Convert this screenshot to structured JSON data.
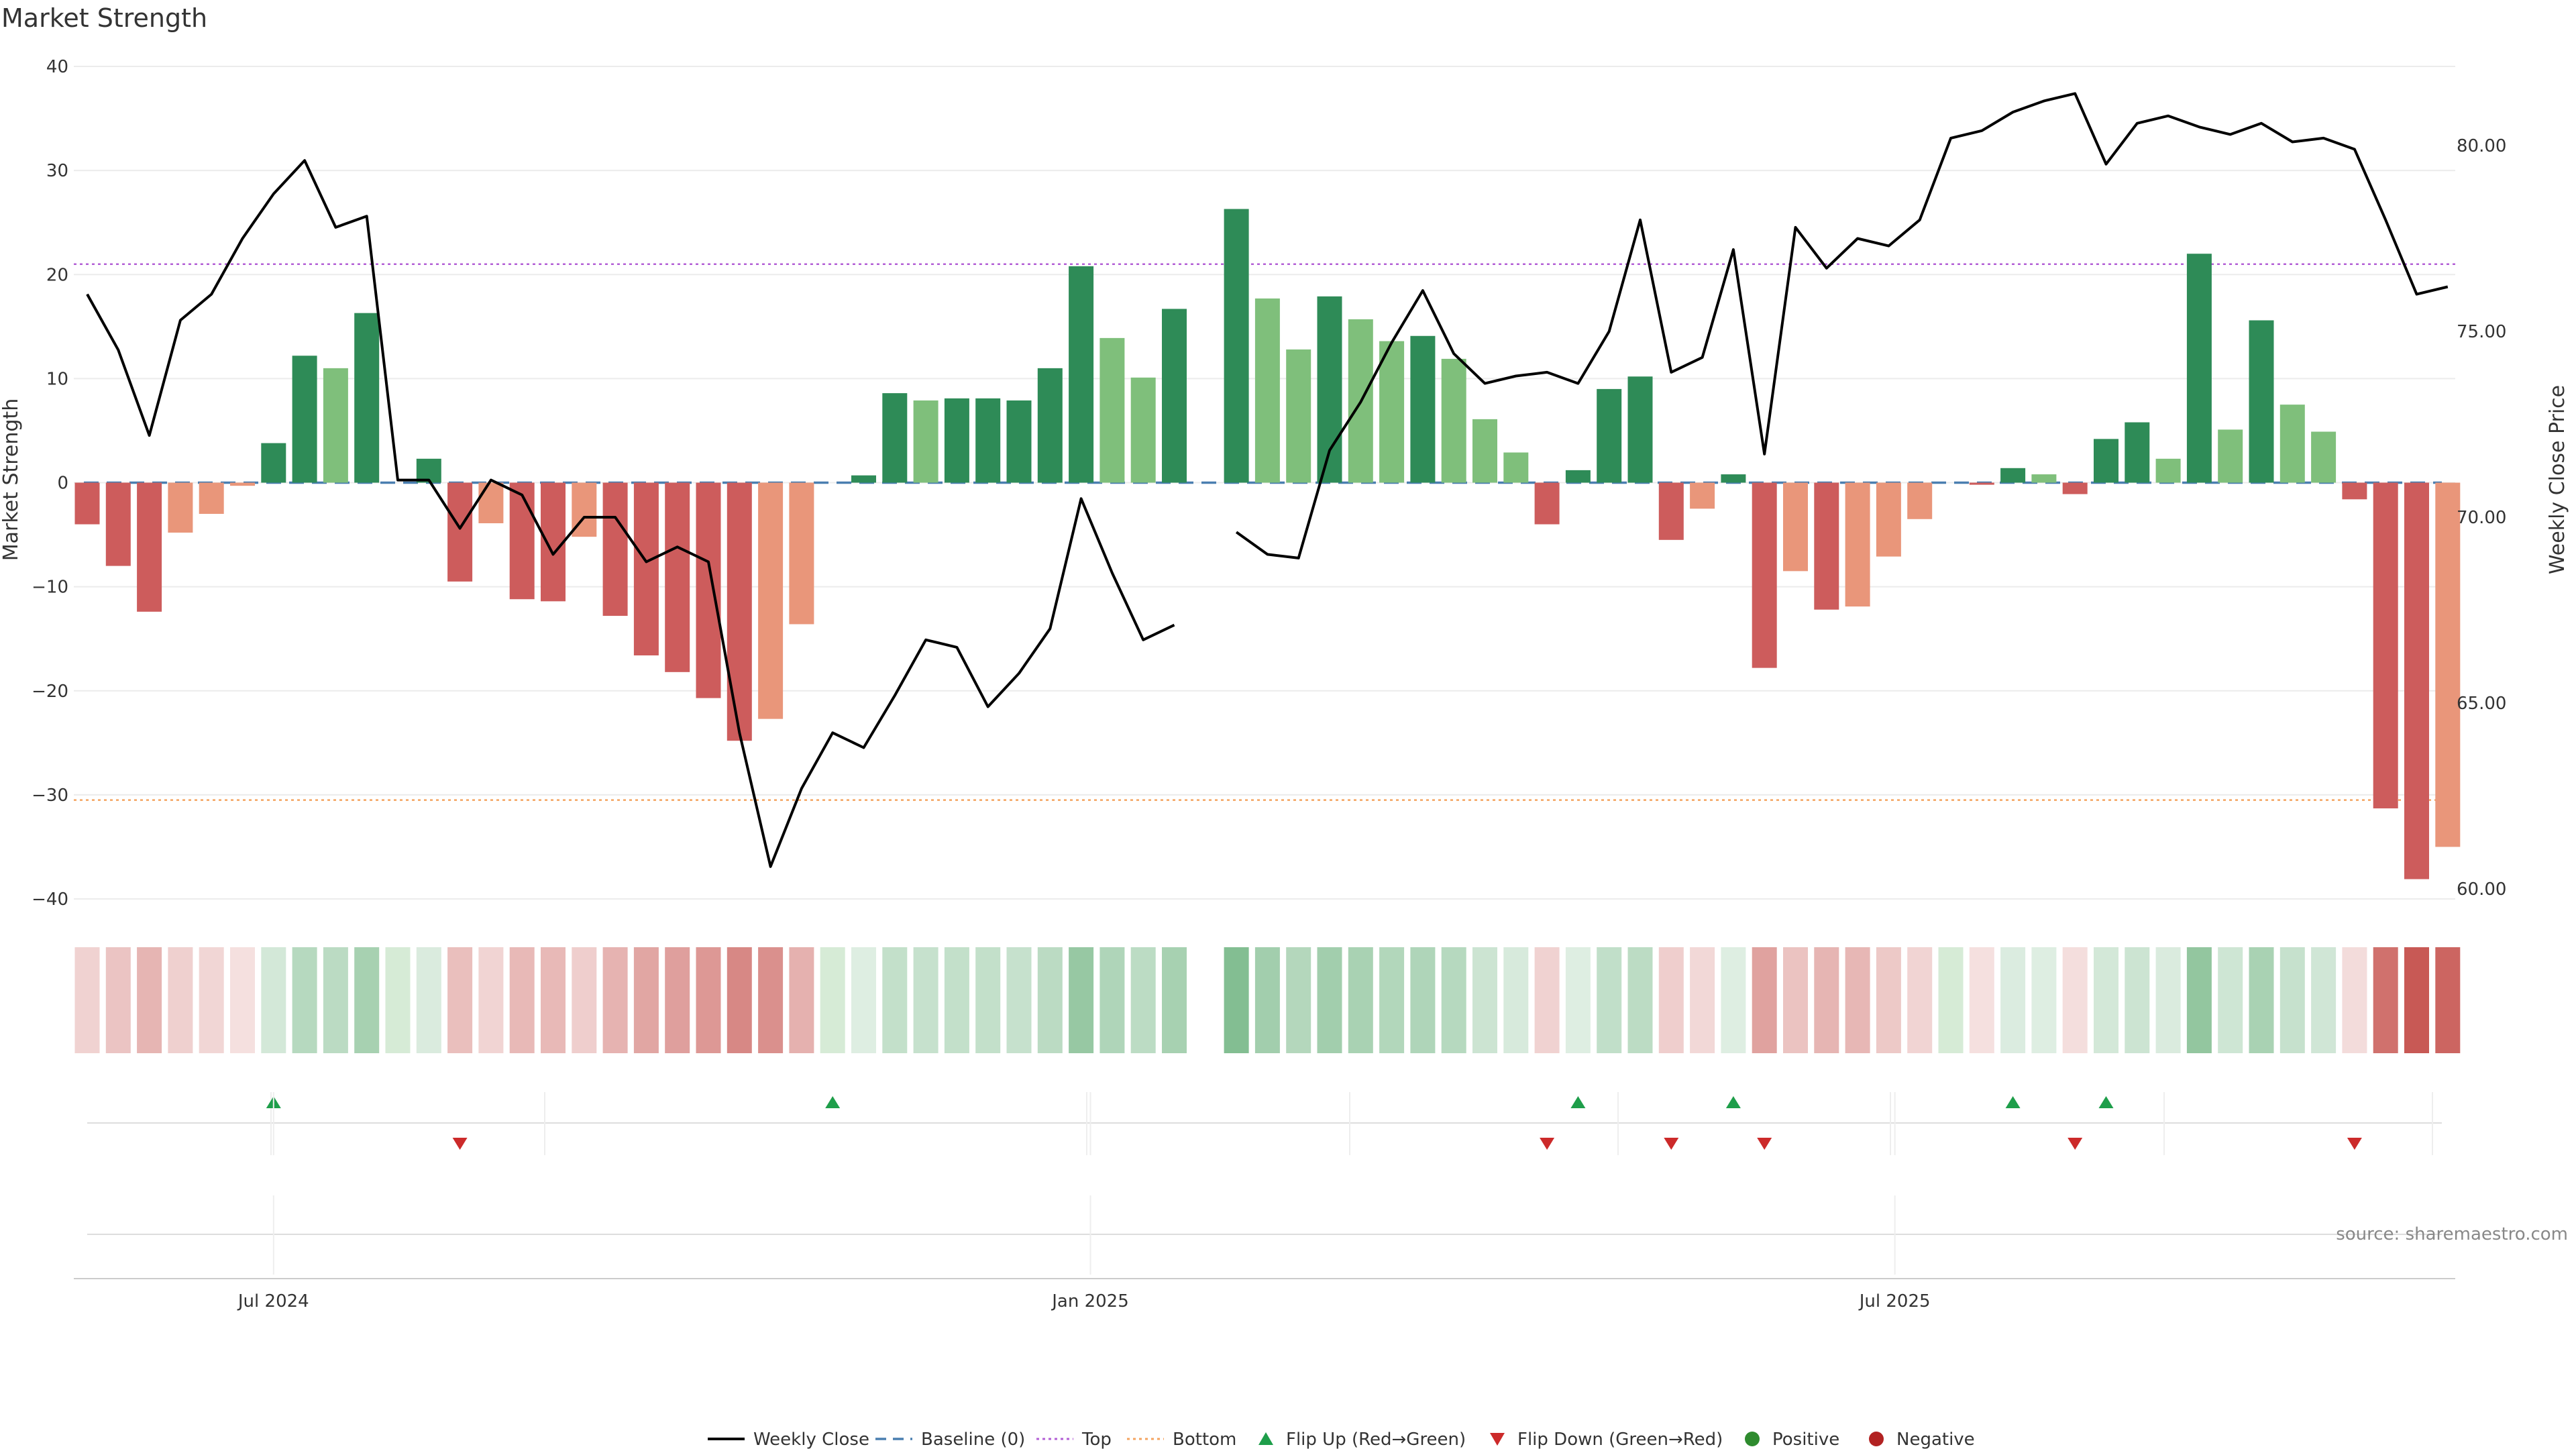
{
  "chart_data": {
    "type": "bar",
    "title": "Market Strength",
    "ylabel": "Market Strength",
    "y2label": "Weekly Close Price",
    "ylim": [
      -40,
      40
    ],
    "y2lim": [
      60,
      82.4
    ],
    "yticks": [
      "40",
      "30",
      "20",
      "10",
      "0",
      "−10",
      "−20",
      "−30",
      "−40"
    ],
    "y2ticks": [
      "80.00",
      "75.00",
      "70.00",
      "65.00",
      "60.00"
    ],
    "xticks": [
      "Jul 2024",
      "Jan 2025",
      "Jul 2025"
    ],
    "xtick_index": [
      6,
      32.3,
      58.2
    ],
    "top_line": 21,
    "bottom_line": -30.5,
    "strength": [
      -4,
      -8,
      -12.4,
      -4.8,
      -3,
      -0.3,
      3.8,
      12.2,
      11,
      16.3,
      0,
      2.3,
      -9.5,
      -3.9,
      -11.2,
      -11.4,
      -5.2,
      -12.8,
      -16.6,
      -18.2,
      -20.7,
      -24.8,
      -22.7,
      -13.6,
      0,
      0.7,
      8.6,
      7.9,
      8.1,
      8.1,
      7.9,
      11,
      20.8,
      13.9,
      10.1,
      16.7,
      null,
      26.3,
      17.7,
      12.8,
      17.9,
      15.7,
      13.6,
      14.1,
      11.9,
      6.1,
      2.9,
      -4,
      1.2,
      9,
      10.2,
      -5.5,
      -2.5,
      0.8,
      -17.8,
      -8.5,
      -12.2,
      -11.9,
      -7.1,
      -3.5,
      0,
      -0.2,
      1.4,
      0.8,
      -1.1,
      4.2,
      5.8,
      2.3,
      22,
      5.1,
      15.6,
      7.5,
      4.9,
      -1.6,
      -31.3,
      -38.1,
      -35
    ],
    "close": [
      76,
      74.5,
      72.2,
      75.3,
      76,
      77.5,
      78.7,
      79.6,
      77.8,
      78.1,
      71,
      71,
      69.7,
      71,
      70.6,
      69,
      70,
      70,
      68.8,
      69.2,
      68.8,
      64.2,
      60.6,
      62.7,
      64.2,
      63.8,
      65.2,
      66.7,
      66.5,
      64.9,
      65.8,
      67,
      70.5,
      68.5,
      66.7,
      67.1,
      null,
      69.6,
      69,
      68.9,
      71.8,
      73.1,
      74.7,
      76.1,
      74.4,
      73.6,
      73.8,
      73.9,
      73.6,
      75,
      78,
      73.9,
      74.3,
      77.2,
      71.7,
      77.8,
      76.7,
      77.5,
      77.3,
      78,
      80.2,
      80.4,
      80.9,
      81.2,
      81.4,
      79.5,
      80.6,
      80.8,
      80.5,
      80.3,
      80.6,
      80.1,
      80.2,
      79.9,
      78,
      76,
      76.2
    ],
    "flip_up": [
      6,
      24,
      48,
      53,
      62,
      65
    ],
    "flip_down": [
      12,
      47,
      51,
      54,
      64,
      73
    ],
    "legend": [
      "Weekly Close",
      "Baseline (0)",
      "Top",
      "Bottom",
      "Flip Up (Red→Green)",
      "Flip Down (Green→Red)",
      "Positive",
      "Negative"
    ]
  },
  "colors": {
    "dark_green": "#2e8b57",
    "light_green": "#7fbf7b",
    "dark_red": "#cd5c5c",
    "light_red": "#e9967a",
    "top_line": "#b35fd6",
    "bottom_line": "#f4a460",
    "baseline": "#4a7fb0",
    "flip_up": "#1e9e4a",
    "flip_down": "#cc2a2a",
    "positive_dot": "#2e8b2e",
    "negative_dot": "#b22222",
    "close_line": "#000000"
  },
  "source": "source: sharemaestro.com"
}
